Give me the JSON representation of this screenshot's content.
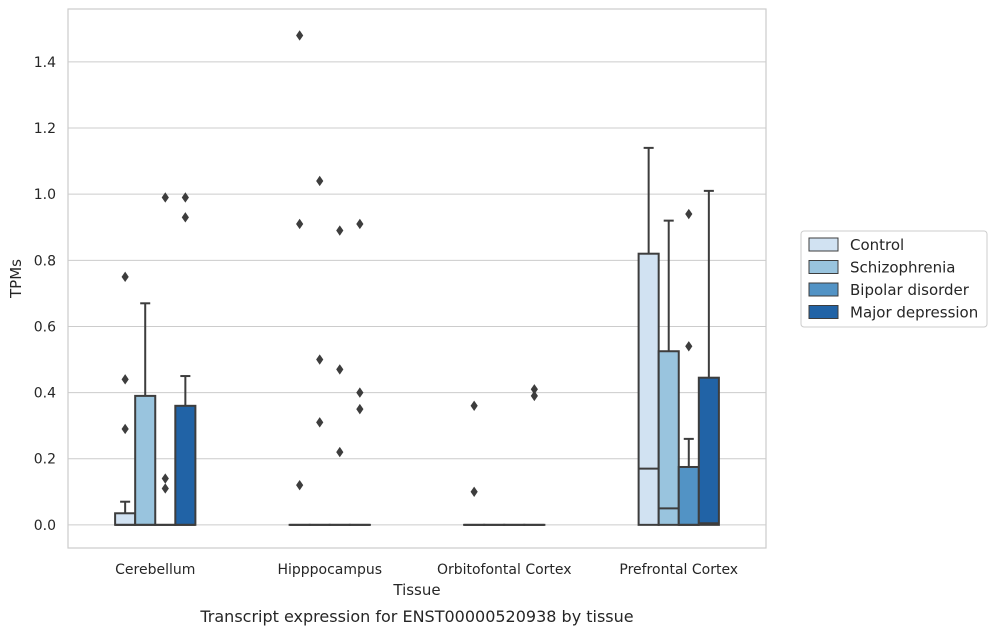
{
  "chart_data": {
    "type": "boxplot",
    "xlabel": "Tissue",
    "ylabel": "TPMs",
    "caption": "Transcript expression for ENST00000520938 by tissue",
    "ylim": [
      -0.07,
      1.56
    ],
    "yticks": [
      0.0,
      0.2,
      0.4,
      0.6,
      0.8,
      1.0,
      1.2,
      1.4
    ],
    "ytick_labels": [
      "0.0",
      "0.2",
      "0.4",
      "0.6",
      "0.8",
      "1.0",
      "1.2",
      "1.4"
    ],
    "grid": "horizontal",
    "legend_position": "right",
    "categories": [
      "Cerebellum",
      "Hipppocampus",
      "Orbitofontal Cortex",
      "Prefrontal Cortex"
    ],
    "series": [
      {
        "name": "Control",
        "color": "#d1e2f2"
      },
      {
        "name": "Schizophrenia",
        "color": "#99c4de"
      },
      {
        "name": "Bipolar disorder",
        "color": "#5293c5"
      },
      {
        "name": "Major depression",
        "color": "#2163a6"
      }
    ],
    "boxes": [
      [
        {
          "q1": 0.0,
          "median": 0.0,
          "q3": 0.035,
          "whisker_low": 0.0,
          "whisker_high": 0.07,
          "outliers": [
            0.29,
            0.44,
            0.75
          ]
        },
        {
          "q1": 0.0,
          "median": 0.0,
          "q3": 0.39,
          "whisker_low": 0.0,
          "whisker_high": 0.67,
          "outliers": []
        },
        {
          "q1": 0.0,
          "median": 0.0,
          "q3": 0.0,
          "whisker_low": 0.0,
          "whisker_high": 0.0,
          "outliers": [
            0.11,
            0.14,
            0.99
          ]
        },
        {
          "q1": 0.0,
          "median": 0.0,
          "q3": 0.36,
          "whisker_low": 0.0,
          "whisker_high": 0.45,
          "outliers": [
            0.93,
            0.99
          ]
        }
      ],
      [
        {
          "q1": 0.0,
          "median": 0.0,
          "q3": 0.0,
          "whisker_low": 0.0,
          "whisker_high": 0.0,
          "outliers": [
            0.12,
            0.91,
            1.48
          ]
        },
        {
          "q1": 0.0,
          "median": 0.0,
          "q3": 0.0,
          "whisker_low": 0.0,
          "whisker_high": 0.0,
          "outliers": [
            0.31,
            0.5,
            1.04
          ]
        },
        {
          "q1": 0.0,
          "median": 0.0,
          "q3": 0.0,
          "whisker_low": 0.0,
          "whisker_high": 0.0,
          "outliers": [
            0.22,
            0.47,
            0.89
          ]
        },
        {
          "q1": 0.0,
          "median": 0.0,
          "q3": 0.0,
          "whisker_low": 0.0,
          "whisker_high": 0.0,
          "outliers": [
            0.35,
            0.4,
            0.91
          ]
        }
      ],
      [
        {
          "q1": 0.0,
          "median": 0.0,
          "q3": 0.0,
          "whisker_low": 0.0,
          "whisker_high": 0.0,
          "outliers": [
            0.1,
            0.36
          ]
        },
        {
          "q1": 0.0,
          "median": 0.0,
          "q3": 0.0,
          "whisker_low": 0.0,
          "whisker_high": 0.0,
          "outliers": []
        },
        {
          "q1": 0.0,
          "median": 0.0,
          "q3": 0.0,
          "whisker_low": 0.0,
          "whisker_high": 0.0,
          "outliers": []
        },
        {
          "q1": 0.0,
          "median": 0.0,
          "q3": 0.0,
          "whisker_low": 0.0,
          "whisker_high": 0.0,
          "outliers": [
            0.39,
            0.41
          ]
        }
      ],
      [
        {
          "q1": 0.0,
          "median": 0.17,
          "q3": 0.82,
          "whisker_low": 0.0,
          "whisker_high": 1.14,
          "outliers": []
        },
        {
          "q1": 0.0,
          "median": 0.05,
          "q3": 0.525,
          "whisker_low": 0.0,
          "whisker_high": 0.92,
          "outliers": []
        },
        {
          "q1": 0.0,
          "median": 0.0,
          "q3": 0.175,
          "whisker_low": 0.0,
          "whisker_high": 0.26,
          "outliers": [
            0.54,
            0.94
          ]
        },
        {
          "q1": 0.0,
          "median": 0.005,
          "q3": 0.445,
          "whisker_low": 0.0,
          "whisker_high": 1.01,
          "outliers": []
        }
      ]
    ]
  }
}
